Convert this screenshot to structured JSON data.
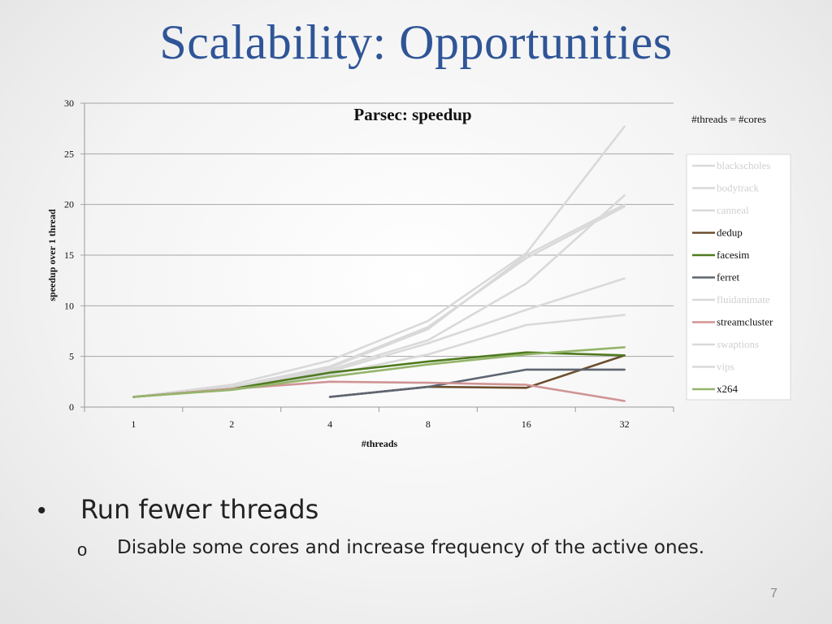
{
  "slide": {
    "title": "Scalability: Opportunities",
    "bullets": [
      {
        "marker": "•",
        "text": "Run fewer threads"
      },
      {
        "marker": "o",
        "text": "Disable some cores and increase frequency of the active ones."
      }
    ],
    "page_number": "7"
  },
  "chart_data": {
    "type": "line",
    "title": "Parsec: speedup",
    "annotation": "#threads = #cores",
    "xlabel": "#threads",
    "ylabel": "speedup over 1 thread",
    "categories": [
      "1",
      "2",
      "4",
      "8",
      "16",
      "32"
    ],
    "ylim": [
      0,
      30
    ],
    "yticks": [
      0,
      5,
      10,
      15,
      20,
      25,
      30
    ],
    "grid": true,
    "legend_position": "right",
    "series": [
      {
        "name": "blackscholes",
        "color": "#d9d9d9",
        "values": [
          1,
          2.0,
          3.9,
          7.7,
          15.0,
          20.0
        ]
      },
      {
        "name": "bodytrack",
        "color": "#d9d9d9",
        "values": [
          1,
          1.9,
          3.7,
          6.6,
          12.2,
          20.9
        ]
      },
      {
        "name": "canneal",
        "color": "#d9d9d9",
        "values": [
          1,
          1.9,
          3.5,
          6.3,
          9.6,
          12.7
        ]
      },
      {
        "name": "dedup",
        "color": "#6b4e2e",
        "values": [
          null,
          null,
          1.0,
          2.0,
          1.9,
          5.1
        ]
      },
      {
        "name": "facesim",
        "color": "#4f7a1f",
        "values": [
          1,
          1.8,
          3.4,
          4.5,
          5.4,
          5.1
        ]
      },
      {
        "name": "ferret",
        "color": "#5d6570",
        "values": [
          null,
          null,
          1.0,
          2.0,
          3.7,
          3.7
        ]
      },
      {
        "name": "fluidanimate",
        "color": "#d9d9d9",
        "values": [
          1,
          2.0,
          4.0,
          7.9,
          14.7,
          19.8
        ]
      },
      {
        "name": "streamcluster",
        "color": "#d09494",
        "values": [
          1,
          1.8,
          2.5,
          2.4,
          2.2,
          0.6
        ]
      },
      {
        "name": "swaptions",
        "color": "#d9d9d9",
        "values": [
          1,
          2.2,
          4.6,
          8.5,
          15.2,
          27.7
        ]
      },
      {
        "name": "vips",
        "color": "#d9d9d9",
        "values": [
          1,
          1.9,
          3.2,
          5.2,
          8.1,
          9.1
        ]
      },
      {
        "name": "x264",
        "color": "#94b46a",
        "values": [
          1,
          1.7,
          3.0,
          4.2,
          5.2,
          5.9
        ]
      }
    ]
  }
}
